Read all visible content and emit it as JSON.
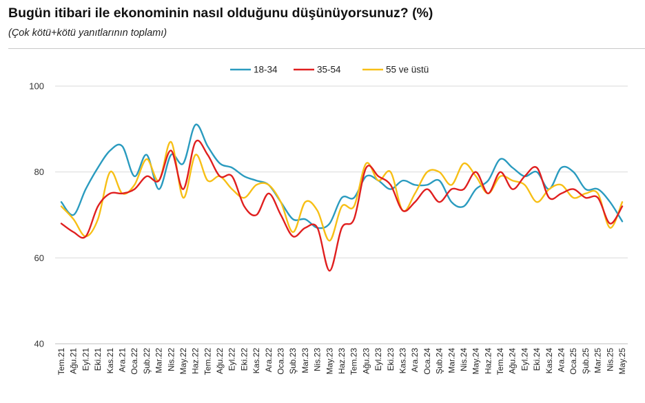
{
  "title": "Bugün itibari ile ekonominin nasıl olduğunu düşünüyorsunuz? (%)",
  "subtitle": "(Çok kötü+kötü yanıtlarının toplamı)",
  "chart_data": {
    "type": "line",
    "categories": [
      "Tem.21",
      "Ağu.21",
      "Eyl.21",
      "Eki.21",
      "Kas.21",
      "Ara.21",
      "Oca.22",
      "Şub.22",
      "Mar.22",
      "Nis.22",
      "May.22",
      "Haz.22",
      "Tem.22",
      "Ağu.22",
      "Eyl.22",
      "Eki.22",
      "Kas.22",
      "Ara.22",
      "Oca.23",
      "Şub.23",
      "Mar.23",
      "Nis.23",
      "May.23",
      "Haz.23",
      "Tem.23",
      "Ağu.23",
      "Eyl.23",
      "Eki.23",
      "Kas.23",
      "Ara.23",
      "Oca.24",
      "Şub.24",
      "Mar.24",
      "Nis.24",
      "May.24",
      "Haz.24",
      "Tem.24",
      "Ağu.24",
      "Eyl.24",
      "Eki.24",
      "Kas.24",
      "Ara.24",
      "Oca.25",
      "Şub.25",
      "Mar.25",
      "Nis.25",
      "May.25"
    ],
    "ylim": [
      40,
      100
    ],
    "yticks": [
      40,
      60,
      80,
      100
    ],
    "grid": true,
    "legend_position": "top-center",
    "series": [
      {
        "name": "18-34",
        "color": "#2a9bbf",
        "values": [
          73,
          70,
          76,
          81,
          85,
          86,
          79,
          84,
          76,
          84,
          82,
          91,
          86,
          82,
          81,
          79,
          78,
          77,
          73,
          69,
          69,
          67,
          68,
          74,
          74,
          79,
          78,
          76,
          78,
          77,
          77,
          78,
          73,
          72,
          76,
          78,
          83,
          81,
          79,
          80,
          76,
          81,
          80,
          76,
          76,
          73,
          68.5
        ]
      },
      {
        "name": "35-54",
        "color": "#e01f1f",
        "values": [
          68,
          66,
          65,
          72,
          75,
          75,
          76,
          79,
          78,
          85,
          76,
          87,
          84,
          79,
          79,
          72,
          70,
          75,
          70,
          65,
          67,
          67,
          57,
          67,
          69,
          81,
          79,
          77,
          71,
          73,
          76,
          73,
          76,
          76,
          80,
          75,
          80,
          76,
          79,
          81,
          74,
          75,
          76,
          74,
          74,
          68,
          72
        ]
      },
      {
        "name": "55 ve üstü",
        "color": "#f7bf16",
        "values": [
          72,
          69,
          65,
          69,
          80,
          75,
          77,
          83,
          78,
          87,
          74,
          84,
          78,
          79,
          76,
          74,
          77,
          77,
          73,
          66,
          73,
          71,
          64,
          72,
          72,
          82,
          78,
          80,
          71,
          75,
          80,
          80,
          77,
          82,
          79,
          75,
          79,
          78,
          77,
          73,
          76,
          77,
          74,
          75,
          75,
          67,
          73
        ]
      }
    ]
  }
}
